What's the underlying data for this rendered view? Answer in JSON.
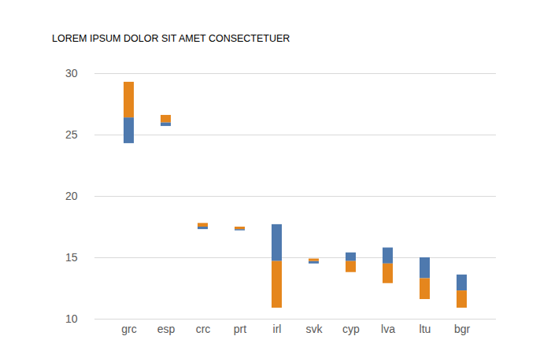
{
  "chart_data": {
    "type": "bar",
    "title": "LOREM IPSUM DOLOR SIT AMET CONSECTETUER",
    "categories": [
      "grc",
      "esp",
      "crc",
      "prt",
      "irl",
      "svk",
      "cyp",
      "lva",
      "ltu",
      "bgr"
    ],
    "series": [
      {
        "color": "#4e79ae",
        "values": [
          [
            24.3,
            26.4
          ],
          [
            25.7,
            26.0
          ],
          [
            17.3,
            17.5
          ],
          [
            17.2,
            17.3
          ],
          [
            14.7,
            17.7
          ],
          [
            14.5,
            14.7
          ],
          [
            14.7,
            15.4
          ],
          [
            14.5,
            15.8
          ],
          [
            13.3,
            15.0
          ],
          [
            12.3,
            13.6
          ]
        ]
      },
      {
        "color": "#e5861d",
        "values": [
          [
            26.4,
            29.3
          ],
          [
            26.0,
            26.6
          ],
          [
            17.5,
            17.8
          ],
          [
            17.3,
            17.5
          ],
          [
            10.9,
            14.7
          ],
          [
            14.7,
            14.9
          ],
          [
            13.8,
            14.7
          ],
          [
            12.9,
            14.5
          ],
          [
            11.6,
            13.3
          ],
          [
            10.9,
            12.3
          ]
        ]
      }
    ],
    "ylim": [
      10,
      30
    ],
    "yticks": [
      10,
      15,
      20,
      25,
      30
    ],
    "grid": true
  }
}
